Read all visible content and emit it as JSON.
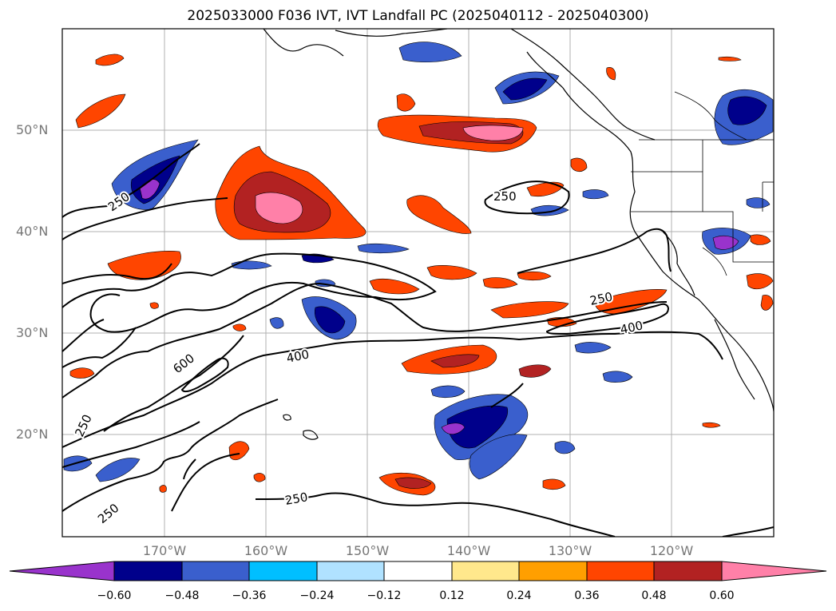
{
  "title": "2025033000 F036 IVT, IVT Landfall PC (2025040112 - 2025040300)",
  "lat_labels": [
    "50°N",
    "40°N",
    "30°N",
    "20°N"
  ],
  "lon_labels": [
    "170°W",
    "160°W",
    "150°W",
    "140°W",
    "130°W",
    "120°W"
  ],
  "colorbar": {
    "ticks": [
      "−0.60",
      "−0.48",
      "−0.36",
      "−0.24",
      "−0.12",
      "0.12",
      "0.24",
      "0.36",
      "0.48",
      "0.60"
    ],
    "colors": [
      "#9933cc",
      "#00008b",
      "#3a5fcd",
      "#00bfff",
      "#b0e2ff",
      "#ffffff",
      "#ffe88c",
      "#ff9f00",
      "#ff4500",
      "#b22222",
      "#ff80a8"
    ]
  },
  "contour_labels": [
    "250",
    "250",
    "250",
    "250",
    "250",
    "250",
    "400",
    "400",
    "600"
  ]
}
